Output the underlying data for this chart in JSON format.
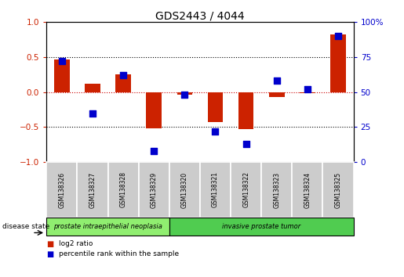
{
  "title": "GDS2443 / 4044",
  "samples": [
    "GSM138326",
    "GSM138327",
    "GSM138328",
    "GSM138329",
    "GSM138320",
    "GSM138321",
    "GSM138322",
    "GSM138323",
    "GSM138324",
    "GSM138325"
  ],
  "log2_ratio": [
    0.47,
    0.12,
    0.25,
    -0.52,
    -0.04,
    -0.43,
    -0.53,
    -0.07,
    -0.02,
    0.82
  ],
  "percentile_rank": [
    72,
    35,
    62,
    8,
    48,
    22,
    13,
    58,
    52,
    90
  ],
  "groups": [
    {
      "label": "prostate intraepithelial neoplasia",
      "start": 0,
      "end": 4,
      "color": "#90ee70"
    },
    {
      "label": "invasive prostate tumor",
      "start": 4,
      "end": 10,
      "color": "#50cc50"
    }
  ],
  "bar_color": "#cc2200",
  "dot_color": "#0000cc",
  "left_axis_color": "#cc2200",
  "right_axis_color": "#0000cc",
  "ylim_left": [
    -1.0,
    1.0
  ],
  "ylim_right": [
    0,
    100
  ],
  "yticks_left": [
    -1,
    -0.5,
    0,
    0.5,
    1
  ],
  "yticks_right": [
    0,
    25,
    50,
    75,
    100
  ],
  "hline_positions": [
    0.5,
    0.0,
    -0.5
  ],
  "hline_colors": [
    "black",
    "#cc0000",
    "black"
  ],
  "hline_styles": [
    "dotted",
    "dotted",
    "dotted"
  ],
  "disease_state_label": "disease state",
  "legend_items": [
    {
      "label": "log2 ratio",
      "color": "#cc2200"
    },
    {
      "label": "percentile rank within the sample",
      "color": "#0000cc"
    }
  ],
  "bar_width": 0.5,
  "dot_size": 35,
  "sample_box_color": "#cccccc",
  "fig_width": 5.15,
  "fig_height": 3.54,
  "dpi": 100
}
